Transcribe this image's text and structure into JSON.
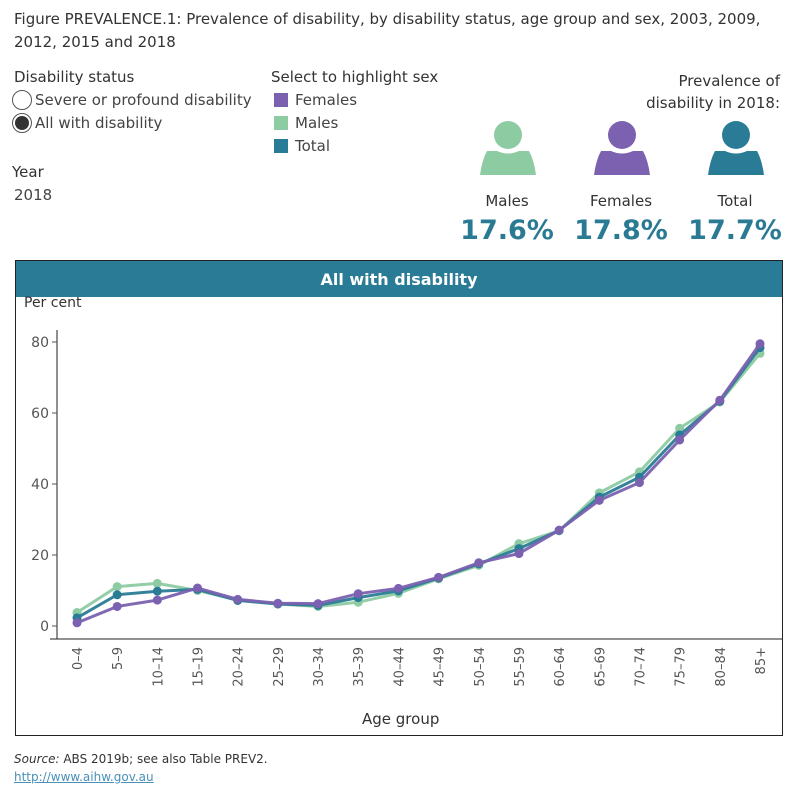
{
  "title": "Figure PREVALENCE.1: Prevalence of disability, by disability status, age group and sex, 2003, 2009, 2012, 2015 and 2018",
  "filters": {
    "disability_status": {
      "label": "Disability status",
      "options": [
        {
          "label": "Severe or profound disability",
          "selected": false
        },
        {
          "label": "All with disability",
          "selected": true
        }
      ]
    },
    "year": {
      "label": "Year",
      "value": "2018"
    }
  },
  "legend": {
    "title": "Select to highlight sex",
    "items": [
      {
        "label": "Females",
        "color": "#7b61b0"
      },
      {
        "label": "Males",
        "color": "#8dcba3"
      },
      {
        "label": "Total",
        "color": "#2a7b96"
      }
    ]
  },
  "prevalence": {
    "heading_line1": "Prevalence of",
    "heading_line2": "disability in 2018:",
    "items": [
      {
        "label": "Males",
        "value": "17.6%",
        "icon": "person-icon",
        "color": "#8dcba3"
      },
      {
        "label": "Females",
        "value": "17.8%",
        "icon": "person-icon",
        "color": "#7b61b0"
      },
      {
        "label": "Total",
        "value": "17.7%",
        "icon": "person-icon",
        "color": "#2a7b96"
      }
    ]
  },
  "chart_header": "All with disability",
  "chart_data": {
    "type": "line",
    "title": "All with disability",
    "xlabel": "Age group",
    "ylabel": "Per cent",
    "ylim": [
      0,
      85
    ],
    "yticks": [
      0,
      20,
      40,
      60,
      80
    ],
    "grid": false,
    "categories": [
      "0–4",
      "5–9",
      "10–14",
      "15–19",
      "20–24",
      "25–29",
      "30–34",
      "35–39",
      "40–44",
      "45–49",
      "50–54",
      "55–59",
      "60–64",
      "65–69",
      "70–74",
      "75–79",
      "80–84",
      "85+"
    ],
    "series": [
      {
        "name": "Males",
        "color": "#8dcba3",
        "values": [
          3.8,
          11.1,
          12.0,
          10.0,
          7.3,
          6.2,
          5.5,
          6.7,
          9.2,
          13.3,
          17.1,
          23.2,
          26.8,
          37.5,
          43.4,
          55.7,
          63.1,
          76.8
        ]
      },
      {
        "name": "Total",
        "color": "#2a7b96",
        "values": [
          2.3,
          8.8,
          9.8,
          10.3,
          7.2,
          6.2,
          5.8,
          8.0,
          9.9,
          13.5,
          17.5,
          21.8,
          26.9,
          36.3,
          41.9,
          53.8,
          63.3,
          78.4
        ]
      },
      {
        "name": "Females",
        "color": "#7b61b0",
        "values": [
          0.9,
          5.5,
          7.3,
          10.7,
          7.5,
          6.4,
          6.3,
          9.1,
          10.6,
          13.7,
          17.8,
          20.4,
          27.0,
          35.4,
          40.4,
          52.4,
          63.6,
          79.5
        ]
      }
    ]
  },
  "footer": {
    "source_label": "Source:",
    "source_text": " ABS 2019b; see also Table PREV2.",
    "url": "http://www.aihw.gov.au"
  }
}
